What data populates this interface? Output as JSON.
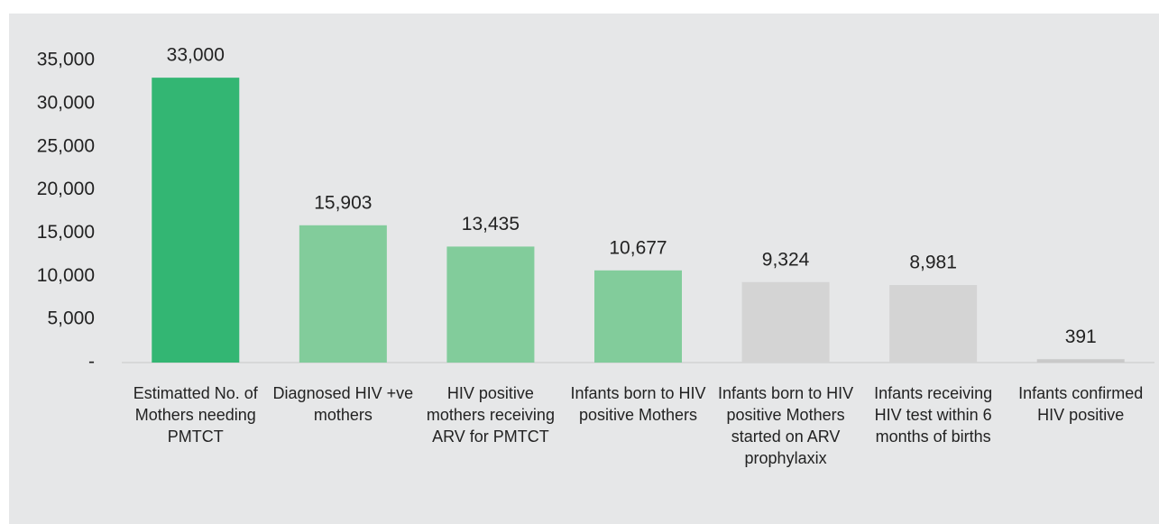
{
  "chart_data": {
    "type": "bar",
    "categories": [
      "Estimatted No. of Mothers needing PMTCT",
      "Diagnosed HIV +ve mothers",
      "HIV positive mothers receiving ARV for PMTCT",
      "Infants born to HIV positive Mothers",
      "Infants born to HIV positive Mothers started on ARV prophylaxix",
      "Infants receiving HIV test within 6 months of births",
      "Infants confirmed HIV positive"
    ],
    "values": [
      33000,
      15903,
      13435,
      10677,
      9324,
      8981,
      391
    ],
    "value_labels": [
      "33,000",
      "15,903",
      "13,435",
      "10,677",
      "9,324",
      "8,981",
      "391"
    ],
    "colors": [
      "#33b673",
      "#82cc9b",
      "#82cc9b",
      "#82cc9b",
      "#d4d4d4",
      "#d4d4d4",
      "#c9c9c9"
    ],
    "ylim": [
      0,
      35000
    ],
    "yticks": [
      {
        "value": 0,
        "label": "-"
      },
      {
        "value": 5000,
        "label": "5,000"
      },
      {
        "value": 10000,
        "label": "10,000"
      },
      {
        "value": 15000,
        "label": "15,000"
      },
      {
        "value": 20000,
        "label": "20,000"
      },
      {
        "value": 25000,
        "label": "25,000"
      },
      {
        "value": 30000,
        "label": "30,000"
      },
      {
        "value": 35000,
        "label": "35,000"
      }
    ]
  }
}
